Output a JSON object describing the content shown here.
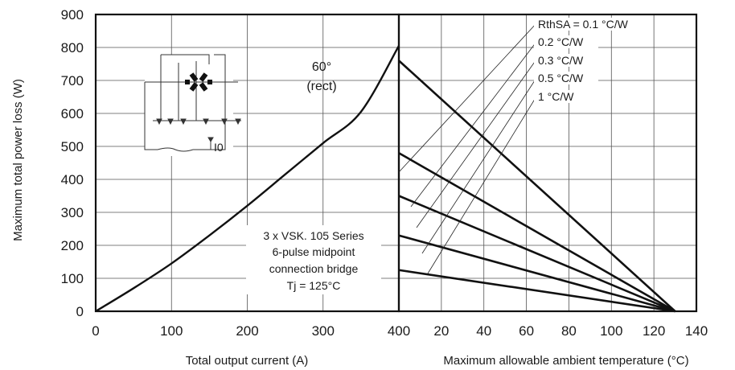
{
  "chart_data": [
    {
      "type": "line",
      "title": "",
      "xlabel": "Total output current (A)",
      "ylabel": "Maximum total power loss (W)",
      "xlim": [
        0,
        400
      ],
      "ylim": [
        0,
        900
      ],
      "x_ticks": [
        "0",
        "100",
        "200",
        "300",
        "400"
      ],
      "y_ticks": [
        "0",
        "100",
        "200",
        "300",
        "400",
        "500",
        "600",
        "700",
        "800",
        "900"
      ],
      "grid": true,
      "series": [
        {
          "name": "60° (rect)",
          "x": [
            0,
            50,
            100,
            150,
            200,
            250,
            300,
            350,
            400
          ],
          "y": [
            0,
            70,
            145,
            230,
            320,
            415,
            510,
            605,
            805
          ]
        }
      ],
      "annotations": {
        "curve_label_line1": "60°",
        "curve_label_line2": "(rect)",
        "device_line1": "3 x VSK. 105 Series",
        "device_line2": "6-pulse midpoint",
        "device_line3": "connection bridge",
        "device_line4": "Tj = 125°C",
        "circuit_current_label": "I0"
      }
    },
    {
      "type": "line",
      "title": "",
      "xlabel": "Maximum allowable ambient temperature (°C)",
      "ylabel": "",
      "xlim": [
        0,
        140
      ],
      "ylim": [
        0,
        900
      ],
      "x_ticks": [
        "20",
        "40",
        "60",
        "80",
        "100",
        "120",
        "140"
      ],
      "grid": true,
      "series": [
        {
          "name": "RthSA = 0.1 °C/W",
          "x": [
            0,
            130
          ],
          "y": [
            760,
            0
          ]
        },
        {
          "name": "0.2 °C/W",
          "x": [
            0,
            130
          ],
          "y": [
            480,
            0
          ]
        },
        {
          "name": "0.3 °C/W",
          "x": [
            0,
            130
          ],
          "y": [
            350,
            0
          ]
        },
        {
          "name": "0.5 °C/W",
          "x": [
            0,
            130
          ],
          "y": [
            230,
            0
          ]
        },
        {
          "name": "1 °C/W",
          "x": [
            0,
            130
          ],
          "y": [
            125,
            0
          ]
        }
      ]
    }
  ],
  "colors": {
    "line": "#111111",
    "grid": "#555555",
    "text": "#1a1a1a",
    "background": "#ffffff"
  }
}
